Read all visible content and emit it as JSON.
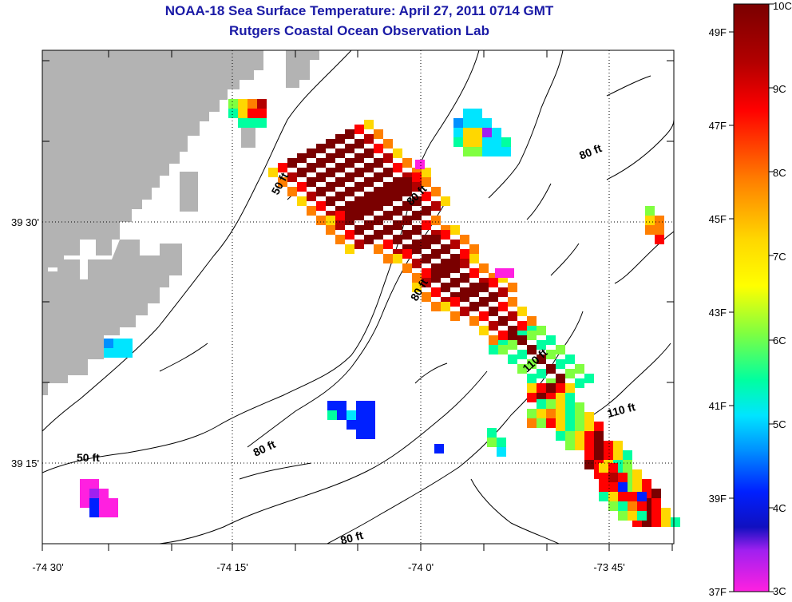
{
  "title": {
    "line1": "NOAA-18 Sea Surface Temperature:  April 27, 2011 0714 GMT",
    "line2": "Rutgers Coastal Ocean Observation Lab"
  },
  "axes": {
    "x_ticks": [
      {
        "lon": -74.5,
        "label": "-74 30'"
      },
      {
        "lon": -74.25,
        "label": "-74 15'"
      },
      {
        "lon": -74.0,
        "label": "-74 0'"
      },
      {
        "lon": -73.75,
        "label": "-73 45'"
      }
    ],
    "y_ticks": [
      {
        "lat": 39.5,
        "label": "39 30'"
      },
      {
        "lat": 39.25,
        "label": "39 15'"
      }
    ]
  },
  "contour_labels": [
    {
      "text": "50 ft"
    },
    {
      "text": "80 ft"
    },
    {
      "text": "80 ft"
    },
    {
      "text": "80 ft"
    },
    {
      "text": "110 ft"
    },
    {
      "text": "110 ft"
    },
    {
      "text": "50 ft"
    },
    {
      "text": "80 ft"
    },
    {
      "text": "80 ft"
    }
  ],
  "colorbar": {
    "fahrenheit_labels": [
      "49F",
      "47F",
      "45F",
      "43F",
      "41F",
      "39F",
      "37F"
    ],
    "celsius_labels": [
      "10C",
      "9C",
      "8C",
      "7C",
      "6C",
      "5C",
      "4C",
      "3C"
    ],
    "range_c": [
      3,
      10
    ]
  },
  "colors": {
    "title": "#1a1aa6",
    "land": "#b3b3b3",
    "contour": "#000000"
  }
}
